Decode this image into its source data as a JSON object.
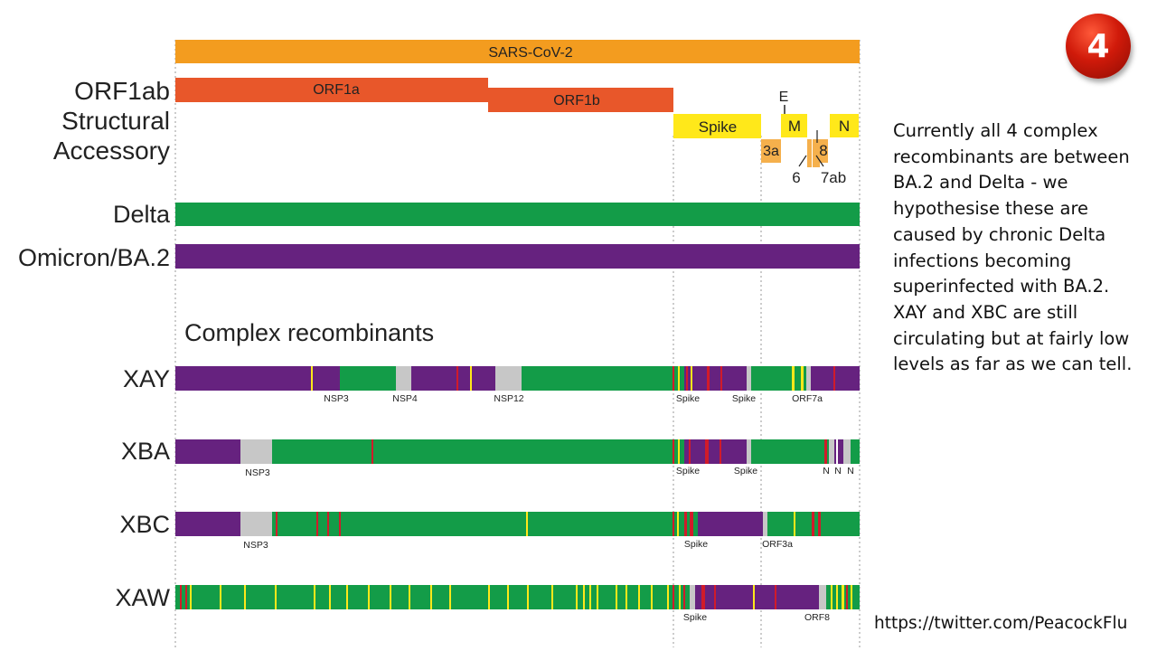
{
  "badge": "4",
  "note": "Currently all 4 complex recombinants are between BA.2 and Delta - we hypothesise these are caused by chronic Delta infections becoming superinfected with BA.2. XAY and XBC are still circulating but at fairly low levels as far as we can tell.",
  "url": "https://twitter.com/PeacockFlu",
  "colors": {
    "orange": "#f39c1f",
    "orf": "#e8572a",
    "yellow": "#ffe81a",
    "accessory": "#f5b04c",
    "delta": "#139c48",
    "omicron": "#66227f",
    "gray": "#c7c7c7",
    "red": "#d11b2a"
  },
  "genome": {
    "title": "SARS-CoV-2",
    "row_labels": {
      "orf1ab": "ORF1ab",
      "structural": "Structural",
      "accessory": "Accessory"
    },
    "orf1a": "ORF1a",
    "orf1b": "ORF1b",
    "spike": "Spike",
    "e": "E",
    "m": "M",
    "n": "N",
    "a3": "3a",
    "a6": "6",
    "a7ab": "7ab",
    "a8": "8"
  },
  "parents": {
    "delta": "Delta",
    "omicron": "Omicron/BA.2"
  },
  "section_title": "Complex recombinants",
  "recombinants": [
    {
      "name": "XAY",
      "labels": [
        "NSP3",
        "NSP4",
        "NSP12",
        "Spike",
        "Spike",
        "ORF7a"
      ]
    },
    {
      "name": "XBA",
      "labels": [
        "NSP3",
        "Spike",
        "Spike",
        "N",
        "N",
        "N"
      ]
    },
    {
      "name": "XBC",
      "labels": [
        "NSP3",
        "Spike",
        "ORF3a"
      ]
    },
    {
      "name": "XAW",
      "labels": [
        "Spike",
        "ORF8"
      ]
    }
  ]
}
